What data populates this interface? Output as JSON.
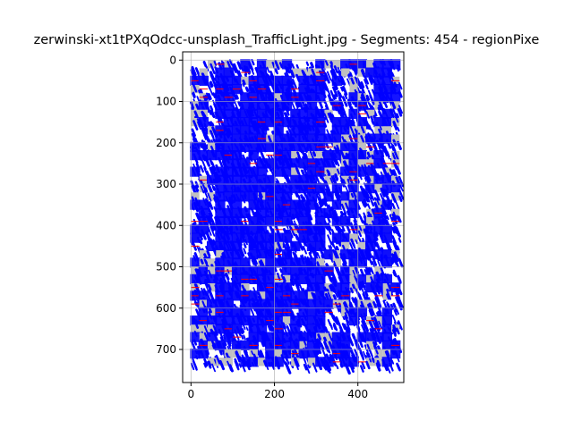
{
  "chart_data": {
    "type": "image",
    "title": "zerwinski-xt1tPXqOdcc-unsplash_TrafficLight.jpg - Segments: 454 - regionPixe",
    "xlabel": "",
    "ylabel": "",
    "xlim": [
      -20,
      510
    ],
    "ylim": [
      780,
      -20
    ],
    "y_inverted": true,
    "grid": true,
    "x_ticks": [
      0,
      200,
      400
    ],
    "y_ticks": [
      0,
      100,
      200,
      300,
      400,
      500,
      600,
      700
    ],
    "image_extent": {
      "width": 490,
      "height": 740
    },
    "segments_count": 454,
    "colors": {
      "segment_outline": "#0000ff",
      "region_fill": "#c0c0c0",
      "boundary_accent": "#ff0000",
      "background": "#ffffff"
    }
  }
}
